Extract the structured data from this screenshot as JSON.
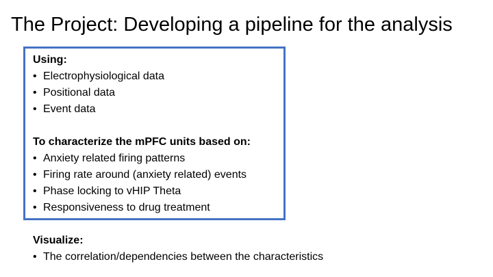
{
  "slide": {
    "title": "The Project: Developing a pipeline for the analysis"
  },
  "box": {
    "border_color": "#4472C4",
    "using": {
      "heading": "Using:",
      "items": [
        "Electrophysiological data",
        "Positional data",
        "Event data"
      ]
    },
    "characterize": {
      "heading": "To characterize the mPFC units based on:",
      "items": [
        "Anxiety related firing patterns",
        "Firing rate around (anxiety related) events",
        "Phase locking to vHIP Theta",
        "Responsiveness to drug treatment"
      ]
    }
  },
  "visualize": {
    "heading": "Visualize:",
    "items": [
      "The correlation/dependencies between the characteristics"
    ]
  }
}
